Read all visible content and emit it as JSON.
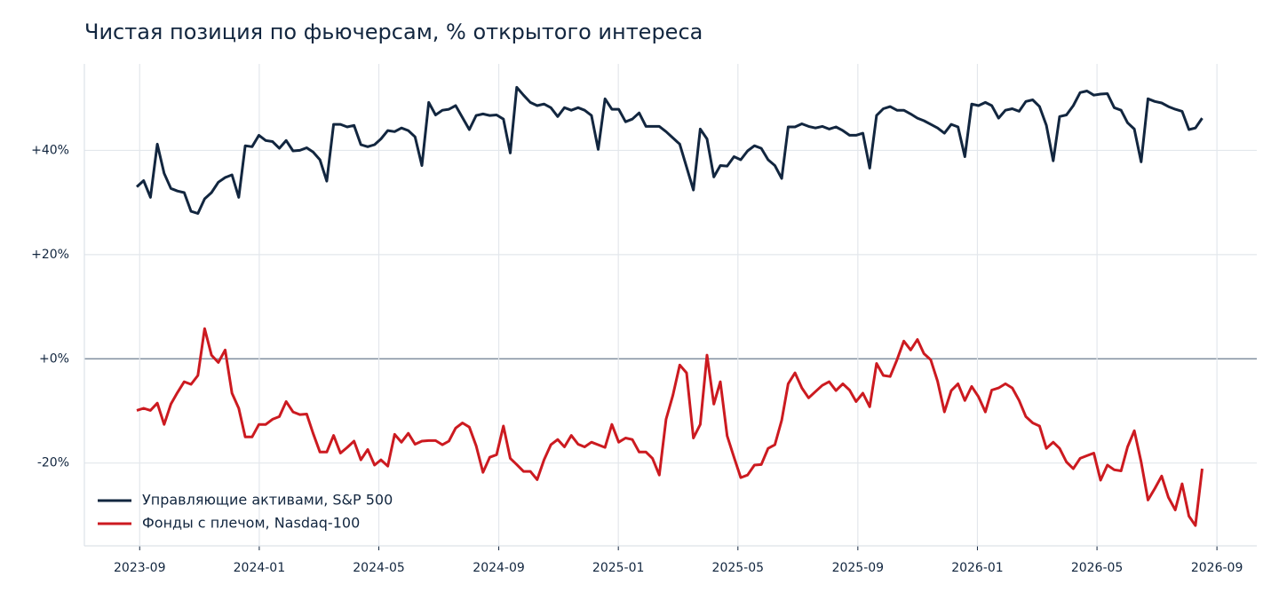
{
  "chart_data": {
    "type": "line",
    "title": "Чистая позиция по фьючерсам, % открытого интереса",
    "x": [
      2023.659,
      2023.678,
      2023.697,
      2023.716,
      2023.735,
      2023.754,
      2023.772,
      2023.791,
      2023.81,
      2023.829,
      2023.848,
      2023.867,
      2023.886,
      2023.905,
      2023.924,
      2023.943,
      2023.961,
      2023.98,
      2023.999,
      2024.018,
      2024.037,
      2024.056,
      2024.075,
      2024.094,
      2024.113,
      2024.132,
      2024.15,
      2024.169,
      2024.188,
      2024.207,
      2024.226,
      2024.245,
      2024.264,
      2024.283,
      2024.302,
      2024.321,
      2024.339,
      2024.358,
      2024.377,
      2024.396,
      2024.415,
      2024.434,
      2024.453,
      2024.472,
      2024.491,
      2024.51,
      2024.528,
      2024.547,
      2024.566,
      2024.585,
      2024.604,
      2024.623,
      2024.642,
      2024.661,
      2024.68,
      2024.699,
      2024.717,
      2024.736,
      2024.755,
      2024.774,
      2024.793,
      2024.812,
      2024.831,
      2024.85,
      2024.869,
      2024.888,
      2024.906,
      2024.925,
      2024.944,
      2024.963,
      2024.982,
      2025.001,
      2025.02,
      2025.039,
      2025.058,
      2025.077,
      2025.095,
      2025.114,
      2025.133,
      2025.152,
      2025.171,
      2025.19,
      2025.209,
      2025.228,
      2025.247,
      2025.266,
      2025.284,
      2025.303,
      2025.322,
      2025.341,
      2025.36,
      2025.379,
      2025.398,
      2025.417,
      2025.436,
      2025.455,
      2025.473,
      2025.492,
      2025.511,
      2025.53,
      2025.549,
      2025.568,
      2025.587,
      2025.606,
      2025.625,
      2025.644,
      2025.662,
      2025.681,
      2025.7,
      2025.719,
      2025.738,
      2025.757,
      2025.776,
      2025.795,
      2025.814,
      2025.833,
      2025.851,
      2025.87,
      2025.889,
      2025.908,
      2025.927,
      2025.946,
      2025.965,
      2025.984,
      2026.003,
      2026.022,
      2026.04,
      2026.059,
      2026.078,
      2026.097,
      2026.116,
      2026.135,
      2026.154,
      2026.173,
      2026.192,
      2026.211,
      2026.229,
      2026.248,
      2026.267,
      2026.286,
      2026.305,
      2026.324,
      2026.343,
      2026.362,
      2026.381,
      2026.4,
      2026.418,
      2026.437,
      2026.456,
      2026.475,
      2026.494,
      2026.513,
      2026.532,
      2026.551,
      2026.57,
      2026.589,
      2026.607,
      2026.626
    ],
    "series": [
      {
        "name": "Управляющие активами, S&P 500",
        "color": "#12263f",
        "values": [
          33.0,
          34.2,
          31.0,
          41.2,
          35.6,
          32.7,
          32.2,
          31.9,
          28.3,
          27.9,
          30.7,
          31.9,
          33.9,
          34.8,
          35.3,
          31.0,
          40.9,
          40.7,
          42.9,
          41.9,
          41.7,
          40.4,
          41.9,
          39.9,
          40.0,
          40.5,
          39.7,
          38.2,
          34.1,
          45.0,
          45.0,
          44.5,
          44.8,
          41.1,
          40.7,
          41.1,
          42.2,
          43.8,
          43.6,
          44.3,
          43.8,
          42.6,
          37.1,
          49.2,
          46.8,
          47.7,
          47.9,
          48.6,
          46.3,
          44.0,
          46.7,
          47.0,
          46.7,
          46.8,
          46.0,
          39.5,
          52.1,
          50.6,
          49.2,
          48.6,
          48.9,
          48.2,
          46.5,
          48.2,
          47.7,
          48.2,
          47.7,
          46.7,
          40.2,
          49.9,
          47.9,
          47.9,
          45.5,
          46.0,
          47.2,
          44.6,
          44.6,
          44.6,
          43.6,
          42.4,
          41.2,
          36.8,
          32.4,
          44.1,
          42.2,
          34.9,
          37.1,
          37.0,
          38.8,
          38.2,
          39.9,
          40.9,
          40.4,
          38.2,
          37.1,
          34.6,
          44.5,
          44.5,
          45.1,
          44.6,
          44.3,
          44.6,
          44.1,
          44.5,
          43.8,
          42.9,
          42.9,
          43.3,
          36.6,
          46.7,
          48.0,
          48.4,
          47.7,
          47.7,
          47.0,
          46.2,
          45.7,
          45.0,
          44.3,
          43.3,
          45.0,
          44.5,
          38.8,
          48.9,
          48.6,
          49.2,
          48.6,
          46.2,
          47.7,
          48.0,
          47.5,
          49.4,
          49.7,
          48.4,
          44.8,
          38.0,
          46.5,
          46.8,
          48.6,
          51.1,
          51.4,
          50.6,
          50.8,
          50.9,
          48.2,
          47.7,
          45.3,
          44.1,
          37.8,
          49.9,
          49.4,
          49.1,
          48.4,
          47.9,
          47.5,
          44.0,
          44.3,
          46.2
        ]
      },
      {
        "name": "Фонды с плечом, Nasdaq-100",
        "color": "#cc1a20",
        "values": [
          -9.9,
          -9.5,
          -9.9,
          -8.5,
          -12.6,
          -8.7,
          -6.5,
          -4.4,
          -4.9,
          -3.2,
          5.8,
          0.7,
          -0.7,
          1.7,
          -6.6,
          -9.5,
          -15.0,
          -15.0,
          -12.6,
          -12.6,
          -11.6,
          -11.1,
          -8.2,
          -10.2,
          -10.7,
          -10.6,
          -14.3,
          -17.9,
          -17.9,
          -14.7,
          -18.1,
          -17.0,
          -15.8,
          -19.4,
          -17.4,
          -20.4,
          -19.4,
          -20.6,
          -14.5,
          -16.0,
          -14.3,
          -16.4,
          -15.8,
          -15.7,
          -15.7,
          -16.5,
          -15.8,
          -13.3,
          -12.3,
          -13.1,
          -16.7,
          -21.8,
          -18.9,
          -18.4,
          -12.9,
          -19.1,
          -20.3,
          -21.6,
          -21.6,
          -23.2,
          -19.4,
          -16.5,
          -15.5,
          -16.9,
          -14.7,
          -16.4,
          -16.9,
          -16.0,
          -16.5,
          -17.0,
          -12.6,
          -16.0,
          -15.2,
          -15.5,
          -17.9,
          -17.9,
          -19.1,
          -22.3,
          -11.6,
          -7.0,
          -1.2,
          -2.7,
          -15.2,
          -12.6,
          0.7,
          -8.7,
          -4.4,
          -14.8,
          -18.9,
          -22.8,
          -22.3,
          -20.4,
          -20.3,
          -17.2,
          -16.5,
          -11.8,
          -4.8,
          -2.7,
          -5.6,
          -7.5,
          -6.3,
          -5.1,
          -4.4,
          -6.1,
          -4.8,
          -6.0,
          -8.2,
          -6.6,
          -9.2,
          -0.9,
          -3.2,
          -3.4,
          -0.2,
          3.4,
          1.7,
          3.7,
          1.0,
          -0.2,
          -4.3,
          -10.2,
          -6.1,
          -4.8,
          -8.0,
          -5.3,
          -7.3,
          -10.2,
          -6.0,
          -5.6,
          -4.8,
          -5.6,
          -8.0,
          -11.1,
          -12.3,
          -12.9,
          -17.2,
          -16.0,
          -17.2,
          -19.8,
          -21.1,
          -19.1,
          -18.6,
          -18.1,
          -23.3,
          -20.4,
          -21.3,
          -21.5,
          -16.9,
          -13.8,
          -19.8,
          -27.1,
          -24.9,
          -22.5,
          -26.6,
          -29.0,
          -24.0,
          -30.2,
          -32.0,
          -21.1
        ]
      }
    ],
    "xlim": [
      2023.513,
      2026.778
    ],
    "xticks": [
      {
        "value": 2023.667,
        "label": "2023-09"
      },
      {
        "value": 2024.0,
        "label": "2024-01"
      },
      {
        "value": 2024.333,
        "label": "2024-05"
      },
      {
        "value": 2024.667,
        "label": "2024-09"
      },
      {
        "value": 2025.0,
        "label": "2025-01"
      },
      {
        "value": 2025.333,
        "label": "2025-05"
      },
      {
        "value": 2025.667,
        "label": "2025-09"
      },
      {
        "value": 2026.0,
        "label": "2026-01"
      },
      {
        "value": 2026.333,
        "label": "2026-05"
      },
      {
        "value": 2026.667,
        "label": "2026-09"
      }
    ],
    "ylim": [
      -35.9,
      56.6
    ],
    "yticks": [
      {
        "value": -20,
        "label": "-20%"
      },
      {
        "value": 0,
        "label": "+0%"
      },
      {
        "value": 20,
        "label": "+20%"
      },
      {
        "value": 40,
        "label": "+40%"
      }
    ],
    "grid": true,
    "legend": "lower left"
  }
}
